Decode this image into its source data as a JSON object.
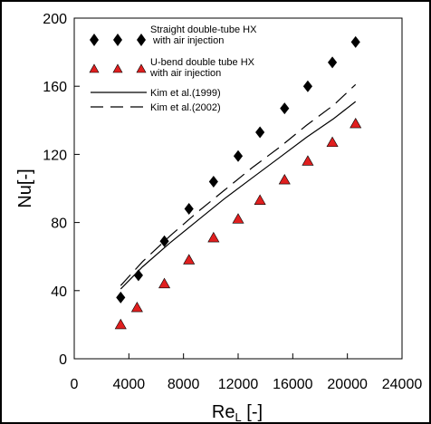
{
  "colors": {
    "straight_marker": "#000000",
    "ubend_marker": "#e01f1f",
    "frame": "#000000"
  },
  "chart_data": {
    "type": "scatter",
    "xlabel": "Re",
    "xlabel_sub": "L",
    "xlabel_unit": " [-]",
    "ylabel": "Nu[-]",
    "xlim": [
      0,
      24000
    ],
    "ylim": [
      0,
      200
    ],
    "xticks": [
      0,
      4000,
      8000,
      12000,
      16000,
      20000,
      24000
    ],
    "yticks": [
      0,
      40,
      80,
      120,
      160,
      200
    ],
    "legend_position": "top-left",
    "series": [
      {
        "name": "Straight double-tube HX\n with air injection",
        "kind": "marker",
        "marker": "diamond",
        "x": [
          3400,
          4700,
          6600,
          8400,
          10200,
          12000,
          13600,
          15400,
          17100,
          18900,
          20600
        ],
        "y": [
          36,
          49,
          69,
          88,
          104,
          119,
          133,
          147,
          160,
          174,
          186
        ]
      },
      {
        "name": "U-bend double tube HX\nwith air injection",
        "kind": "marker",
        "marker": "triangle",
        "x": [
          3400,
          4600,
          6600,
          8400,
          10200,
          12000,
          13600,
          15400,
          17100,
          18900,
          20600
        ],
        "y": [
          20,
          30,
          44,
          58,
          71,
          82,
          93,
          105,
          116,
          127,
          138
        ]
      },
      {
        "name": "Kim et al.(1999)",
        "kind": "line",
        "dash": "solid",
        "x": [
          3400,
          5000,
          7000,
          9000,
          11000,
          13000,
          15000,
          17000,
          19000,
          20600
        ],
        "y": [
          41,
          54,
          68,
          81,
          94,
          106,
          118,
          130,
          141,
          151
        ]
      },
      {
        "name": "Kim et al.(2002)",
        "kind": "line",
        "dash": "long-dash",
        "x": [
          3400,
          5000,
          7000,
          9000,
          11000,
          13000,
          15000,
          17000,
          19000,
          20600
        ],
        "y": [
          43,
          57,
          72,
          86,
          99,
          112,
          124,
          137,
          149,
          161
        ]
      }
    ]
  }
}
